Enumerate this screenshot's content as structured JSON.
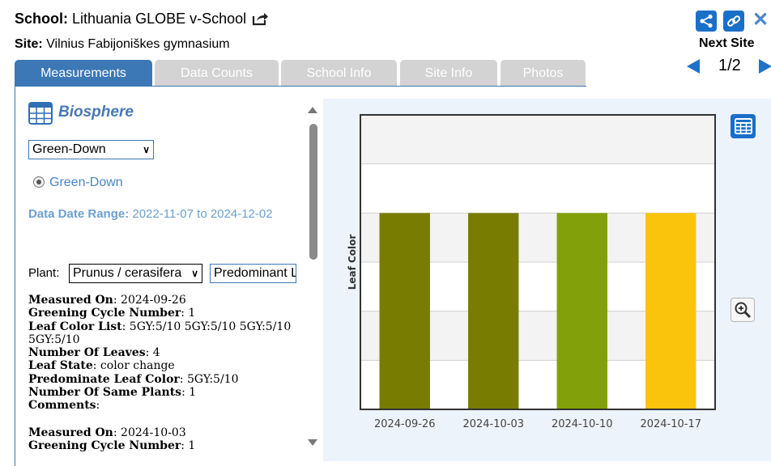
{
  "header": {
    "school_label": "School:",
    "school_name": "Lithuania GLOBE v-School",
    "site_label": "Site:",
    "site_name": "Vilnius Fabijoniškes gymnasium"
  },
  "nav": {
    "next_site_label": "Next Site",
    "page_indicator": "1/2"
  },
  "tabs": [
    {
      "label": "Measurements",
      "active": true
    },
    {
      "label": "Data Counts",
      "active": false
    },
    {
      "label": "School Info",
      "active": false
    },
    {
      "label": "Site Info",
      "active": false
    },
    {
      "label": "Photos",
      "active": false
    }
  ],
  "panel": {
    "section_title": "Biosphere",
    "measurement_select": "Green-Down",
    "radio_label": "Green-Down",
    "date_range_label": "Data Date Range:",
    "date_range_value": "2022-11-07 to 2024-12-02",
    "plant_label": "Plant:",
    "plant_select": "Prunus / cerasifera",
    "leaf_select": "Predominant Leaf Color"
  },
  "measurements": [
    {
      "fields": [
        {
          "key": "Measured On",
          "value": "2024-09-26"
        },
        {
          "key": "Greening Cycle Number",
          "value": "1"
        },
        {
          "key": "Leaf Color List",
          "value": "5GY:5/10 5GY:5/10 5GY:5/10 5GY:5/10"
        },
        {
          "key": "Number Of Leaves",
          "value": "4"
        },
        {
          "key": "Leaf State",
          "value": "color change"
        },
        {
          "key": "Predominate Leaf Color",
          "value": "5GY:5/10"
        },
        {
          "key": "Number Of Same Plants",
          "value": "1"
        },
        {
          "key": "Comments",
          "value": ""
        }
      ]
    },
    {
      "fields": [
        {
          "key": "Measured On",
          "value": "2024-10-03"
        },
        {
          "key": "Greening Cycle Number",
          "value": "1"
        }
      ]
    }
  ],
  "colors": {
    "accent": "#3b78b5",
    "button_blue": "#1a6fc9",
    "chart_bg": "#edf3fa"
  },
  "icons": {
    "export": "export-icon",
    "share": "share-icon",
    "link": "link-icon",
    "close": "close-icon",
    "table": "table-icon",
    "zoom": "zoom-in-icon"
  },
  "chart_data": {
    "type": "bar",
    "categories": [
      "2024-09-26",
      "2024-10-03",
      "2024-10-10",
      "2024-10-17"
    ],
    "values": [
      4,
      4,
      4,
      4
    ],
    "bar_colors": [
      "#787c00",
      "#787c00",
      "#82a00a",
      "#fbc40c"
    ],
    "ylabel": "Leaf Color",
    "ylim": [
      0,
      6
    ],
    "grid": true,
    "grid_band_shading": true
  }
}
